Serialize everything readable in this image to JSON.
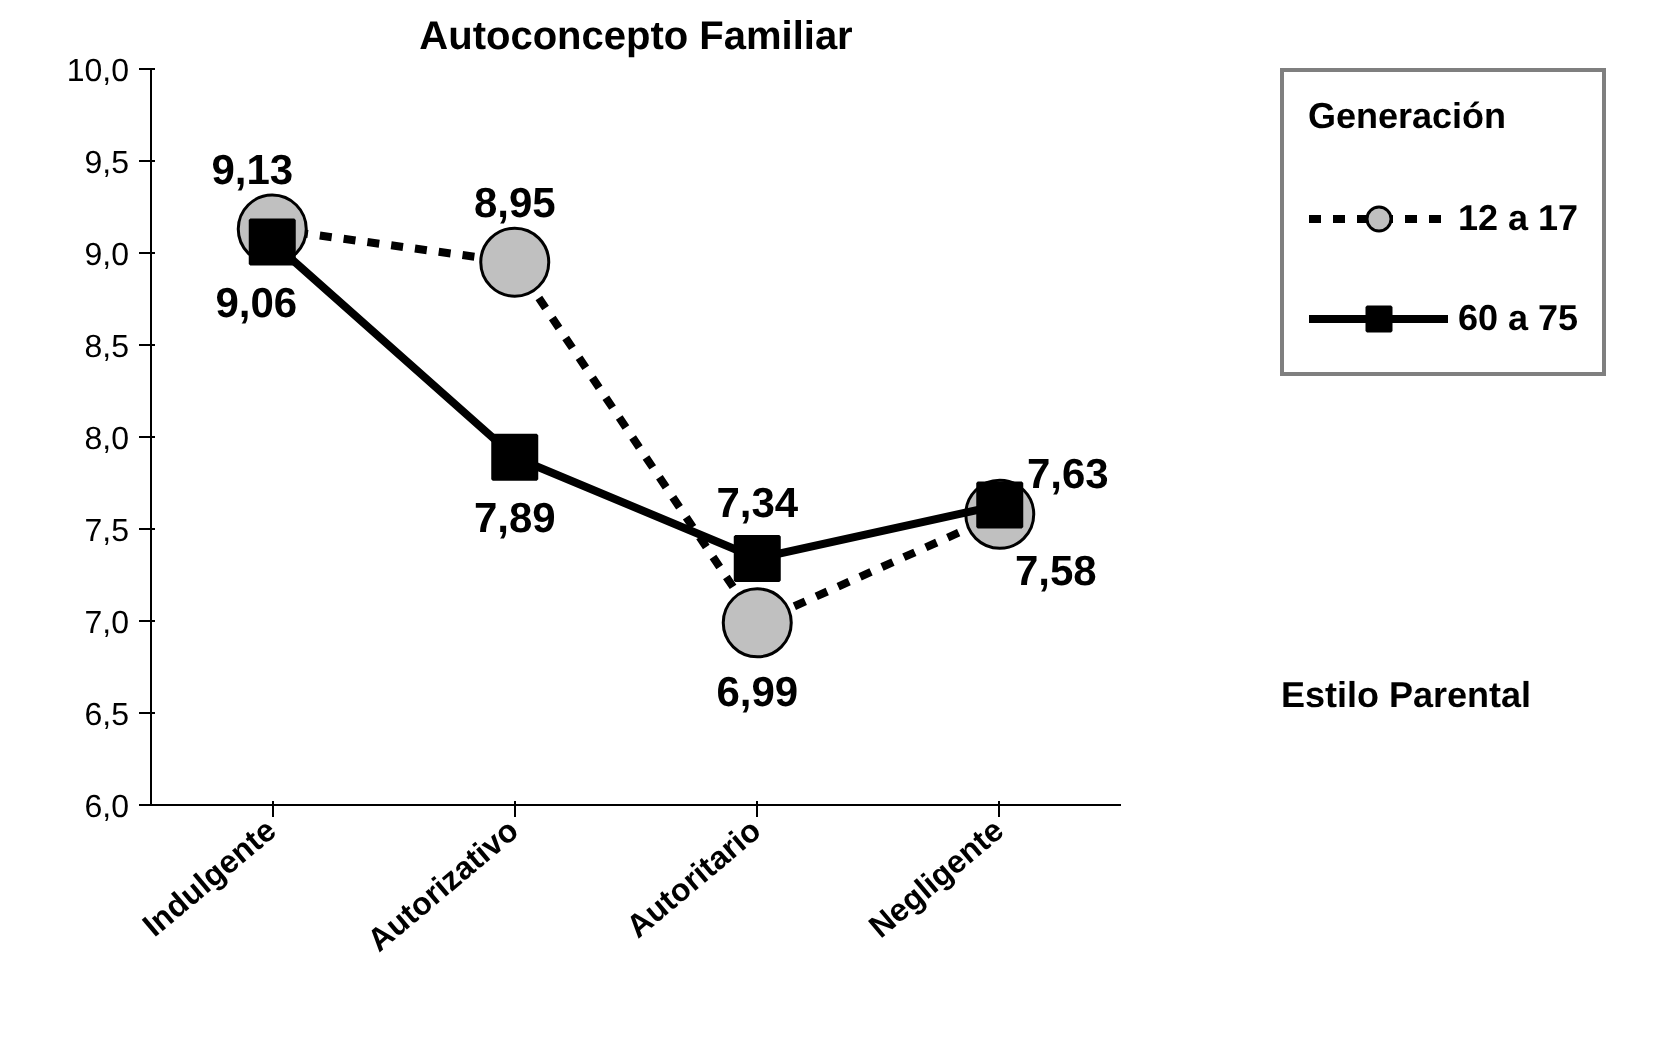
{
  "chart_data": {
    "type": "line",
    "title": "Autoconcepto Familiar",
    "xlabel": "Estilo Parental",
    "legend_title": "Generación",
    "categories": [
      "Indulgente",
      "Autorizativo",
      "Autoritario",
      "Negligente"
    ],
    "series": [
      {
        "name": "12 a 17",
        "color": "#c0c0c0",
        "values": [
          9.13,
          8.95,
          6.99,
          7.58
        ],
        "value_labels": [
          "9,13",
          "8,95",
          "6,99",
          "7,58"
        ],
        "marker": "circle",
        "line_style": "dashed"
      },
      {
        "name": "60 a 75",
        "color": "#000000",
        "values": [
          9.06,
          7.89,
          7.34,
          7.63
        ],
        "value_labels": [
          "9,06",
          "7,89",
          "7,34",
          "7,63"
        ],
        "marker": "square",
        "line_style": "solid"
      }
    ],
    "ylim": [
      6.0,
      10.0
    ],
    "yticks": [
      {
        "value": 6.0,
        "label": "6,0"
      },
      {
        "value": 6.5,
        "label": "6,5"
      },
      {
        "value": 7.0,
        "label": "7,0"
      },
      {
        "value": 7.5,
        "label": "7,5"
      },
      {
        "value": 8.0,
        "label": "8,0"
      },
      {
        "value": 8.5,
        "label": "8,5"
      },
      {
        "value": 9.0,
        "label": "9,0"
      },
      {
        "value": 9.5,
        "label": "9,5"
      },
      {
        "value": 10.0,
        "label": "10,0"
      }
    ],
    "grid": false,
    "legend": "right"
  }
}
